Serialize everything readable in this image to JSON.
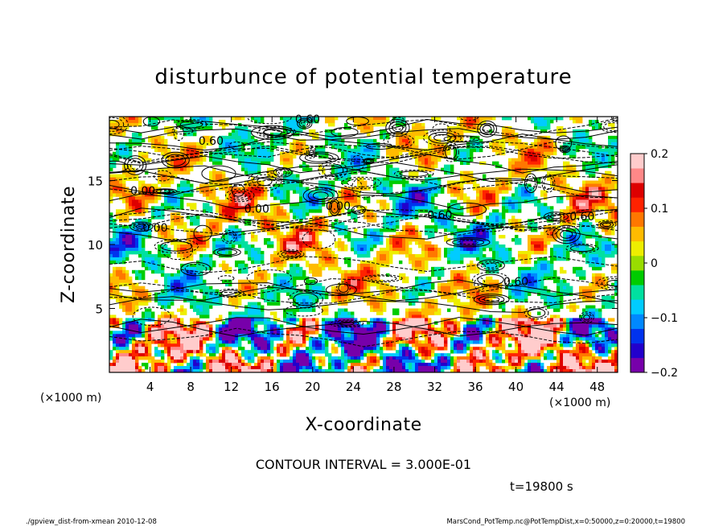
{
  "chart_data": {
    "type": "heatmap",
    "title": "disturbunce of potential temperature",
    "xlabel": "X-coordinate",
    "ylabel": "Z-coordinate",
    "x_unit_label": "(×1000 m)",
    "z_unit_label": "(×1000 m)",
    "xlim": [
      0,
      50
    ],
    "zlim": [
      0,
      20
    ],
    "x_ticks": [
      4,
      8,
      12,
      16,
      20,
      24,
      28,
      32,
      36,
      40,
      44,
      48
    ],
    "z_ticks": [
      5,
      10,
      15
    ],
    "contour_interval_text": "CONTOUR INTERVAL = 3.000E-01",
    "contour_labels": [
      "0.60",
      "0.60",
      "0.00",
      "0.00",
      "0.00",
      "0.00",
      "0.60",
      "0.60",
      "0.60"
    ],
    "colorbar": {
      "min": -0.2,
      "max": 0.2,
      "ticks": [
        "0.2",
        "0.1",
        "0",
        "−0.1",
        "−0.2"
      ],
      "tick_values": [
        0.2,
        0.1,
        0,
        -0.1,
        -0.2
      ],
      "colors": [
        "#7700aa",
        "#2200cc",
        "#0033ee",
        "#0088ff",
        "#00ccff",
        "#00e0a0",
        "#00cc00",
        "#99dd00",
        "#eeee00",
        "#ffbb00",
        "#ff7700",
        "#ff2200",
        "#dd0000",
        "#ff8888",
        "#ffcccc"
      ]
    },
    "time_label": "t=19800 s",
    "grid": false,
    "legend": "colorbar-right"
  },
  "footer": {
    "left": "./gpview_dist-from-xmean  2010-12-08",
    "right": "MarsCond_PotTemp.nc@PotTempDist,x=0:50000,z=0:20000,t=19800"
  }
}
